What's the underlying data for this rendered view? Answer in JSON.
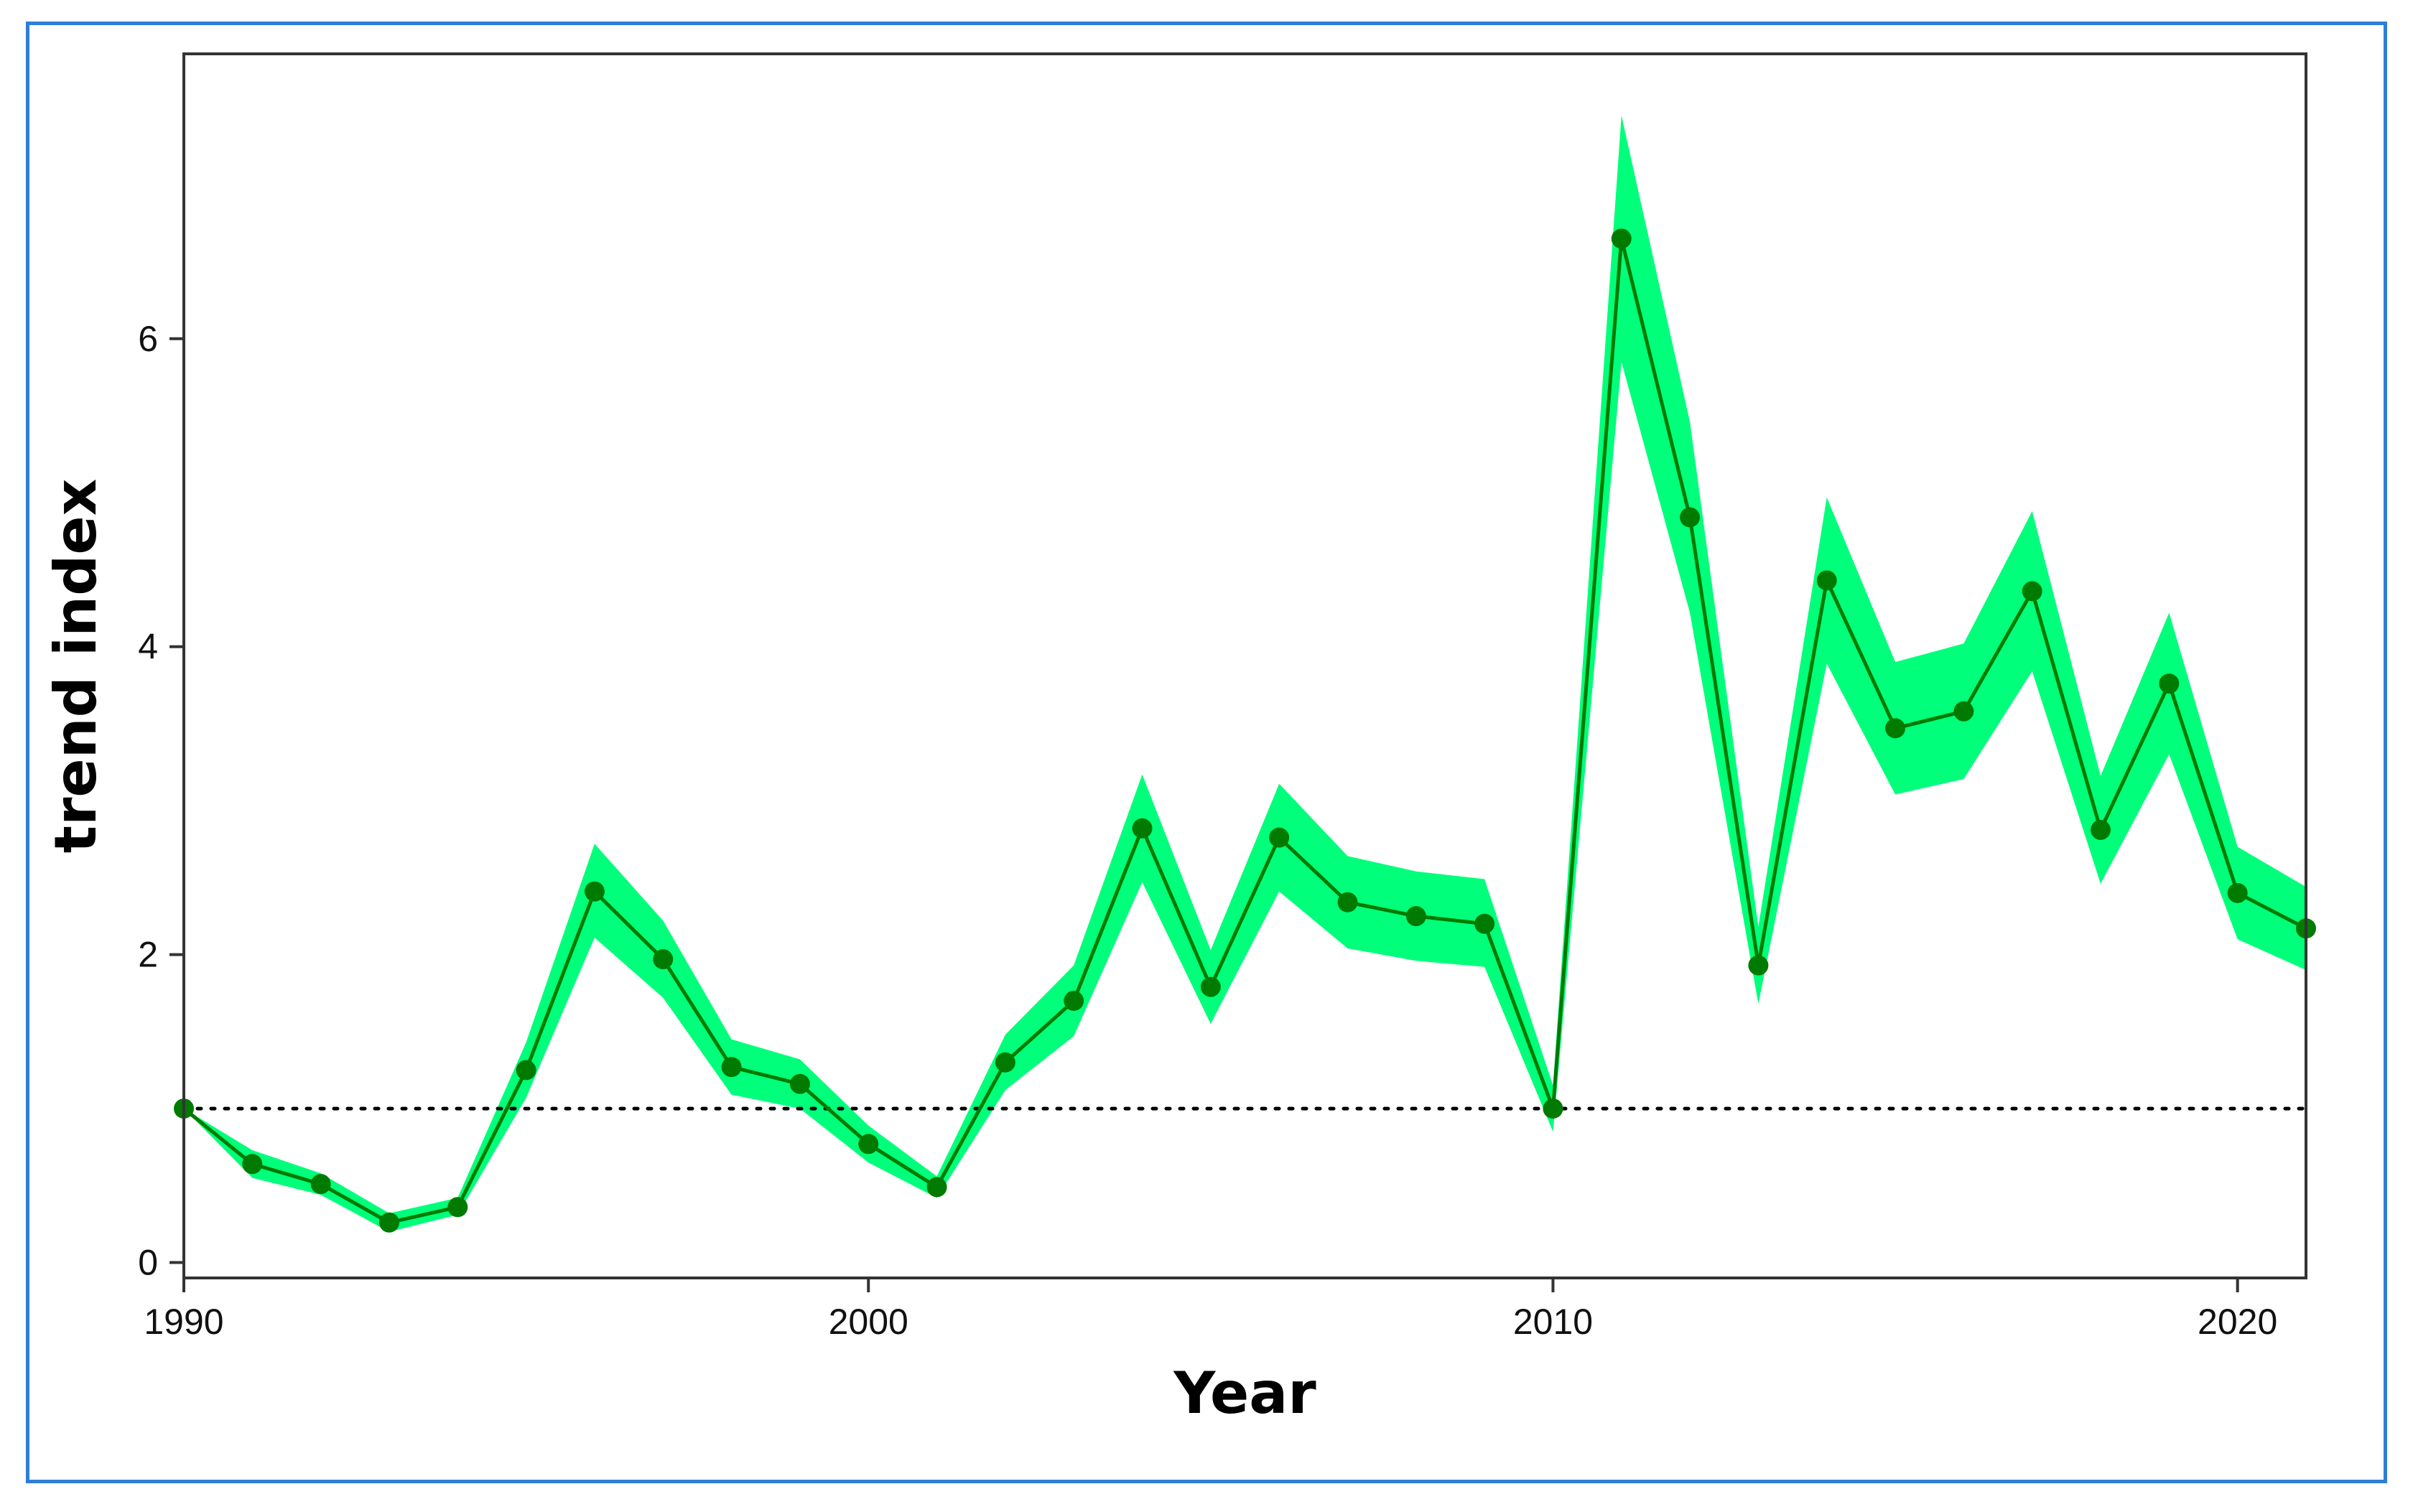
{
  "chart_data": {
    "type": "line",
    "title": "",
    "xlabel": "Year",
    "ylabel": "trend index",
    "xlim": [
      1990,
      2021
    ],
    "ylim": [
      -0.1,
      7.85
    ],
    "x_ticks": [
      1990,
      2000,
      2010,
      2020
    ],
    "y_ticks": [
      0,
      2,
      4,
      6
    ],
    "grid": false,
    "reference_line": {
      "y": 1,
      "style": "dotted"
    },
    "series": [
      {
        "x": [
          1990,
          1991,
          1992,
          1993,
          1994,
          1995,
          1996,
          1997,
          1998,
          1999,
          2000,
          2001,
          2002,
          2003,
          2004,
          2005,
          2006,
          2007,
          2008,
          2009,
          2010,
          2011,
          2012,
          2013,
          2014,
          2015,
          2016,
          2017,
          2018,
          2019,
          2020,
          2021
        ],
        "y": [
          1.0,
          0.64,
          0.51,
          0.26,
          0.36,
          1.25,
          2.41,
          1.97,
          1.27,
          1.16,
          0.77,
          0.49,
          1.3,
          1.7,
          2.82,
          1.79,
          2.76,
          2.34,
          2.25,
          2.2,
          1.0,
          6.65,
          4.84,
          1.93,
          4.43,
          3.47,
          3.58,
          4.36,
          2.81,
          3.76,
          2.4,
          2.17
        ],
        "lower": [
          1.0,
          0.55,
          0.44,
          0.2,
          0.31,
          1.07,
          2.11,
          1.72,
          1.09,
          1.0,
          0.65,
          0.42,
          1.12,
          1.47,
          2.47,
          1.55,
          2.41,
          2.04,
          1.96,
          1.92,
          0.85,
          5.85,
          4.22,
          1.68,
          3.89,
          3.04,
          3.14,
          3.84,
          2.46,
          3.3,
          2.1,
          1.9
        ],
        "upper": [
          1.0,
          0.73,
          0.58,
          0.32,
          0.42,
          1.43,
          2.72,
          2.22,
          1.45,
          1.32,
          0.89,
          0.56,
          1.48,
          1.93,
          3.17,
          2.03,
          3.11,
          2.64,
          2.54,
          2.49,
          1.15,
          7.45,
          5.46,
          2.18,
          4.97,
          3.9,
          4.02,
          4.88,
          3.16,
          4.22,
          2.7,
          2.44
        ]
      }
    ],
    "colors": {
      "band": "#00ff7a",
      "line": "#007a00",
      "marker": "#007a00",
      "frame": "#2f7ed8"
    }
  }
}
